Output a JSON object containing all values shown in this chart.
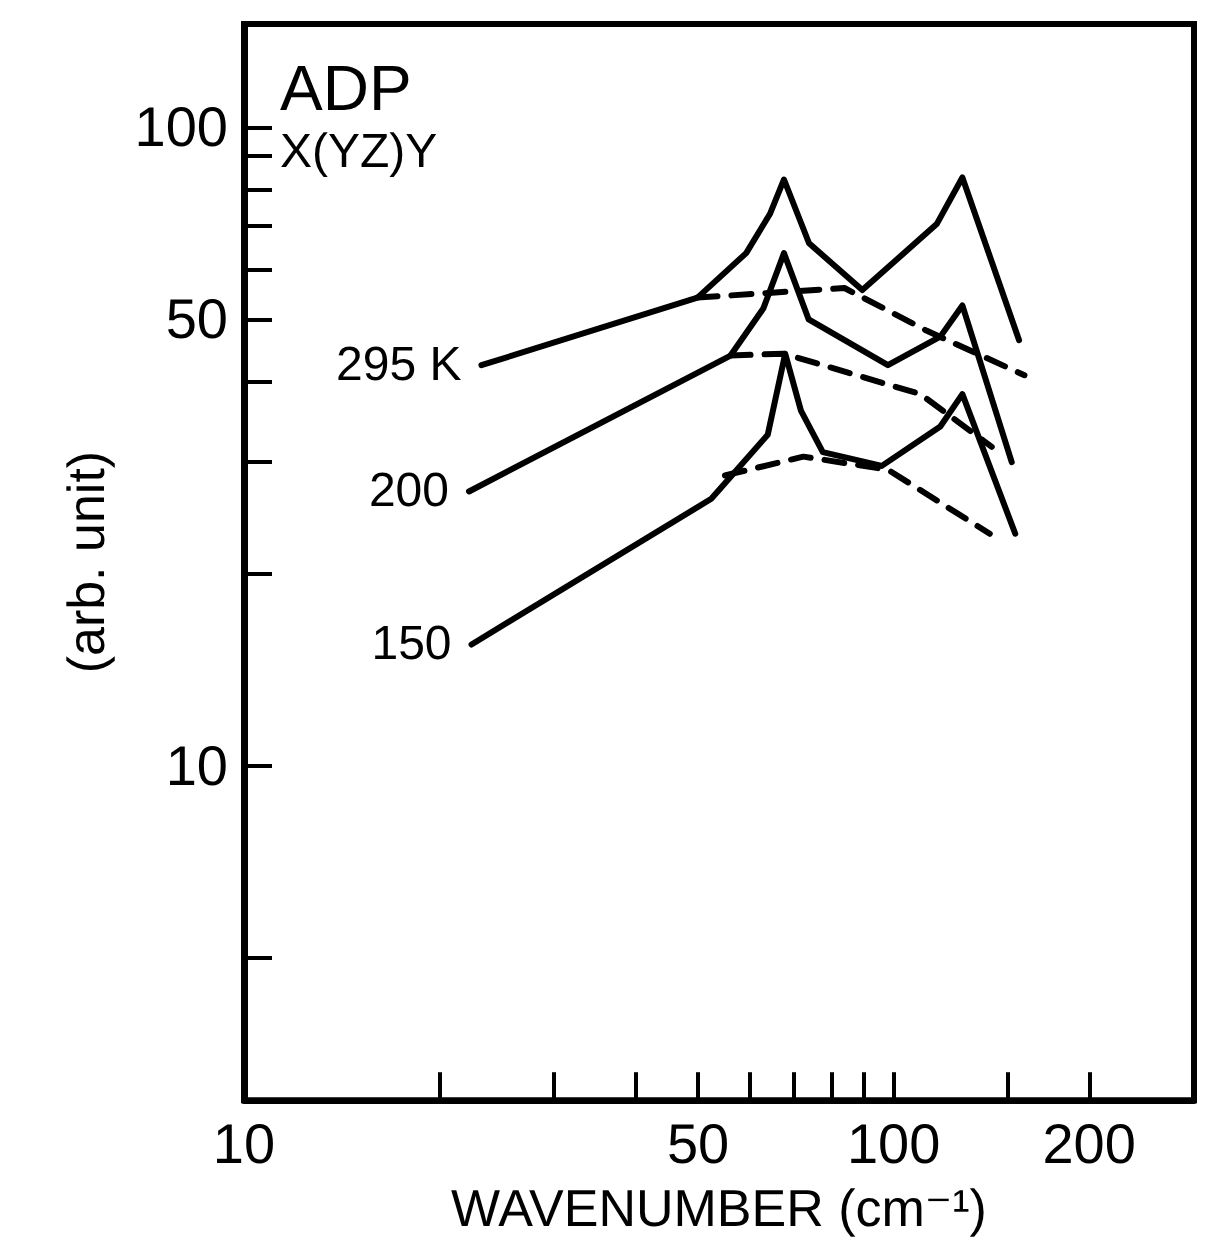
{
  "chart_data": {
    "type": "line",
    "xlabel": "WAVENUMBER (cm⁻¹)",
    "ylabel": "(arb. unit)",
    "annotations": [
      "ADP",
      "X(YZ)Y"
    ],
    "log": "xy",
    "xlim": [
      10,
      290
    ],
    "ylim": [
      3,
      145
    ],
    "xticks": [
      10,
      {
        "value": 20,
        "label": null
      },
      {
        "value": 30,
        "label": null
      },
      {
        "value": 40,
        "label": null
      },
      50,
      {
        "value": 60,
        "label": null
      },
      {
        "value": 70,
        "label": null
      },
      {
        "value": 80,
        "label": null
      },
      {
        "value": 90,
        "label": null
      },
      100,
      {
        "value": 150,
        "label": null
      },
      200
    ],
    "yticks": [
      {
        "value": 5,
        "label": null
      },
      10,
      {
        "value": 20,
        "label": null
      },
      {
        "value": 30,
        "label": null
      },
      {
        "value": 40,
        "label": null
      },
      50,
      {
        "value": 60,
        "label": null
      },
      {
        "value": 70,
        "label": null
      },
      {
        "value": 80,
        "label": null
      },
      {
        "value": 90,
        "label": null
      },
      100
    ],
    "series": [
      {
        "name": "295 K",
        "color": "#000000",
        "line_style": "solid",
        "x": [
          23.2,
          49.9,
          59.3,
          64.5,
          67.8,
          74.1,
          89.5,
          116.5,
          127.6,
          156
        ],
        "values": [
          42.4,
          54.1,
          63.5,
          73.1,
          82.8,
          65.8,
          55.6,
          70.5,
          83.4,
          46.4
        ]
      },
      {
        "color": "#000000",
        "line_style": "dashed",
        "x": [
          49.9,
          84,
          112.5,
          159
        ],
        "values": [
          54.1,
          56,
          48,
          40.9
        ]
      },
      {
        "name": "200",
        "color": "#000000",
        "line_style": "solid",
        "x": [
          22.2,
          56.1,
          63,
          67.8,
          74,
          98,
          118,
          127.6,
          152
        ],
        "values": [
          26.9,
          43.9,
          52,
          63.5,
          50,
          42.4,
          47,
          52.6,
          29.9
        ]
      },
      {
        "color": "#000000",
        "line_style": "dashed",
        "x": [
          56.1,
          67.8,
          110,
          141.6
        ],
        "values": [
          43.9,
          44.2,
          38.2,
          31.6
        ]
      },
      {
        "name": "150",
        "color": "#000000",
        "line_style": "solid",
        "x": [
          22.4,
          52.4,
          64,
          68.1,
          72,
          77.8,
          95.9,
          118,
          127.6,
          153.9
        ],
        "values": [
          15.5,
          26.2,
          33,
          44.2,
          36,
          31,
          29.5,
          34,
          38.2,
          23.1
        ]
      },
      {
        "color": "#000000",
        "line_style": "dashed",
        "x": [
          55,
          72.6,
          98,
          140.6
        ],
        "values": [
          28.5,
          30.5,
          29.1,
          23.1
        ]
      }
    ]
  }
}
